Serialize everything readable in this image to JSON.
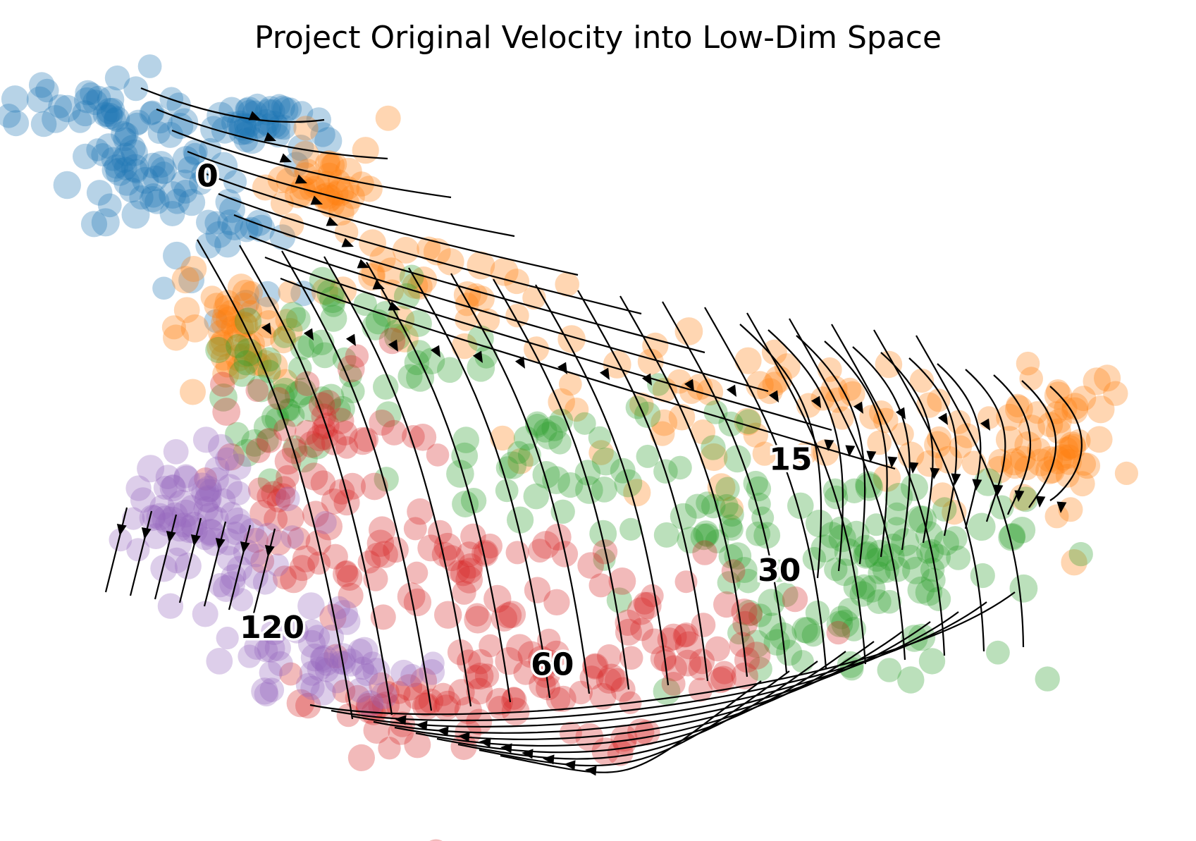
{
  "chart_data": {
    "type": "scatter",
    "title": "Project Original Velocity into Low-Dim Space",
    "xlabel": "",
    "ylabel": "",
    "axes_visible": false,
    "grid": false,
    "legend": "none",
    "overlay": "velocity streamlines with arrowheads",
    "series": [
      {
        "name": "0",
        "color": "#1f77b4"
      },
      {
        "name": "15",
        "color": "#ff7f0e"
      },
      {
        "name": "30",
        "color": "#2ca02c"
      },
      {
        "name": "60",
        "color": "#d62728"
      },
      {
        "name": "120",
        "color": "#9467bd"
      }
    ],
    "cluster_labels": [
      {
        "text": "0",
        "x": 0.158,
        "y": 0.855
      },
      {
        "text": "15",
        "x": 0.672,
        "y": 0.472
      },
      {
        "text": "30",
        "x": 0.662,
        "y": 0.322
      },
      {
        "text": "60",
        "x": 0.462,
        "y": 0.195
      },
      {
        "text": "120",
        "x": 0.215,
        "y": 0.245
      }
    ],
    "xlim": [
      0,
      1
    ],
    "ylim": [
      0,
      1
    ]
  }
}
